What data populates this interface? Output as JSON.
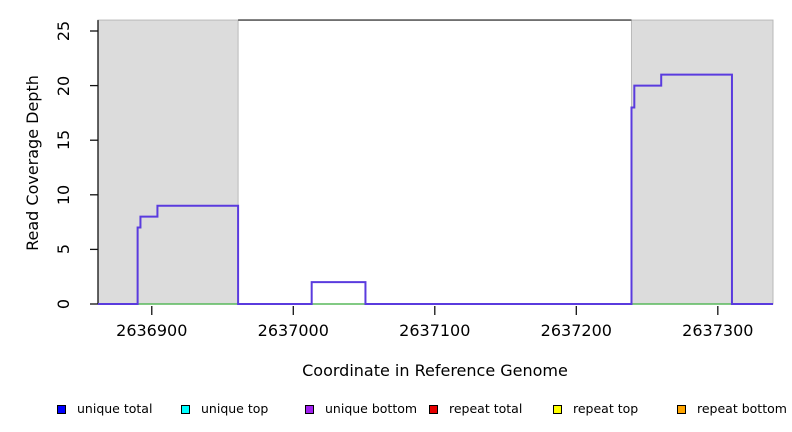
{
  "chart_data": {
    "type": "line",
    "subtype": "step-coverage-plot",
    "xlabel": "Coordinate in Reference Genome",
    "ylabel": "Read Coverage Depth",
    "xlim": [
      2636862,
      2637339
    ],
    "ylim": [
      0,
      26
    ],
    "grid": false,
    "x_ticks": [
      2636900,
      2637000,
      2637100,
      2637200,
      2637300
    ],
    "y_ticks": [
      0,
      5,
      10,
      15,
      20,
      25
    ],
    "shaded_regions": {
      "fill": "#dcdcdc",
      "border": "#b9b9b9",
      "regions": [
        [
          2636862,
          2636961
        ],
        [
          2637239,
          2637339
        ]
      ]
    },
    "top_boundary_line": {
      "y": 26,
      "color": "#5c5c5c"
    },
    "series": [
      {
        "name": "baseline zero coverage",
        "color": "#58b85c",
        "style": "flat",
        "points": [
          [
            2636862,
            0
          ],
          [
            2637310,
            0
          ]
        ]
      },
      {
        "name": "unique bottom coverage",
        "color": "#5a3bde",
        "style": "step",
        "points": [
          [
            2636862,
            0
          ],
          [
            2636890,
            7
          ],
          [
            2636892,
            8
          ],
          [
            2636904,
            9
          ],
          [
            2636961,
            0
          ],
          [
            2637013,
            2
          ],
          [
            2637051,
            0
          ],
          [
            2637239,
            18
          ],
          [
            2637241,
            20
          ],
          [
            2637260,
            21
          ],
          [
            2637310,
            0
          ],
          [
            2637339,
            0
          ]
        ]
      }
    ],
    "legend_position": "bottom",
    "legend": [
      {
        "label": "unique total",
        "color": "#0000ff"
      },
      {
        "label": "unique top",
        "color": "#00ffff"
      },
      {
        "label": "unique bottom",
        "color": "#a020f0"
      },
      {
        "label": "repeat total",
        "color": "#e60000"
      },
      {
        "label": "repeat top",
        "color": "#ffff00"
      },
      {
        "label": "repeat bottom",
        "color": "#ffa500"
      }
    ]
  },
  "axes": {
    "x_title": "Coordinate in Reference Genome",
    "y_title": "Read Coverage Depth"
  }
}
